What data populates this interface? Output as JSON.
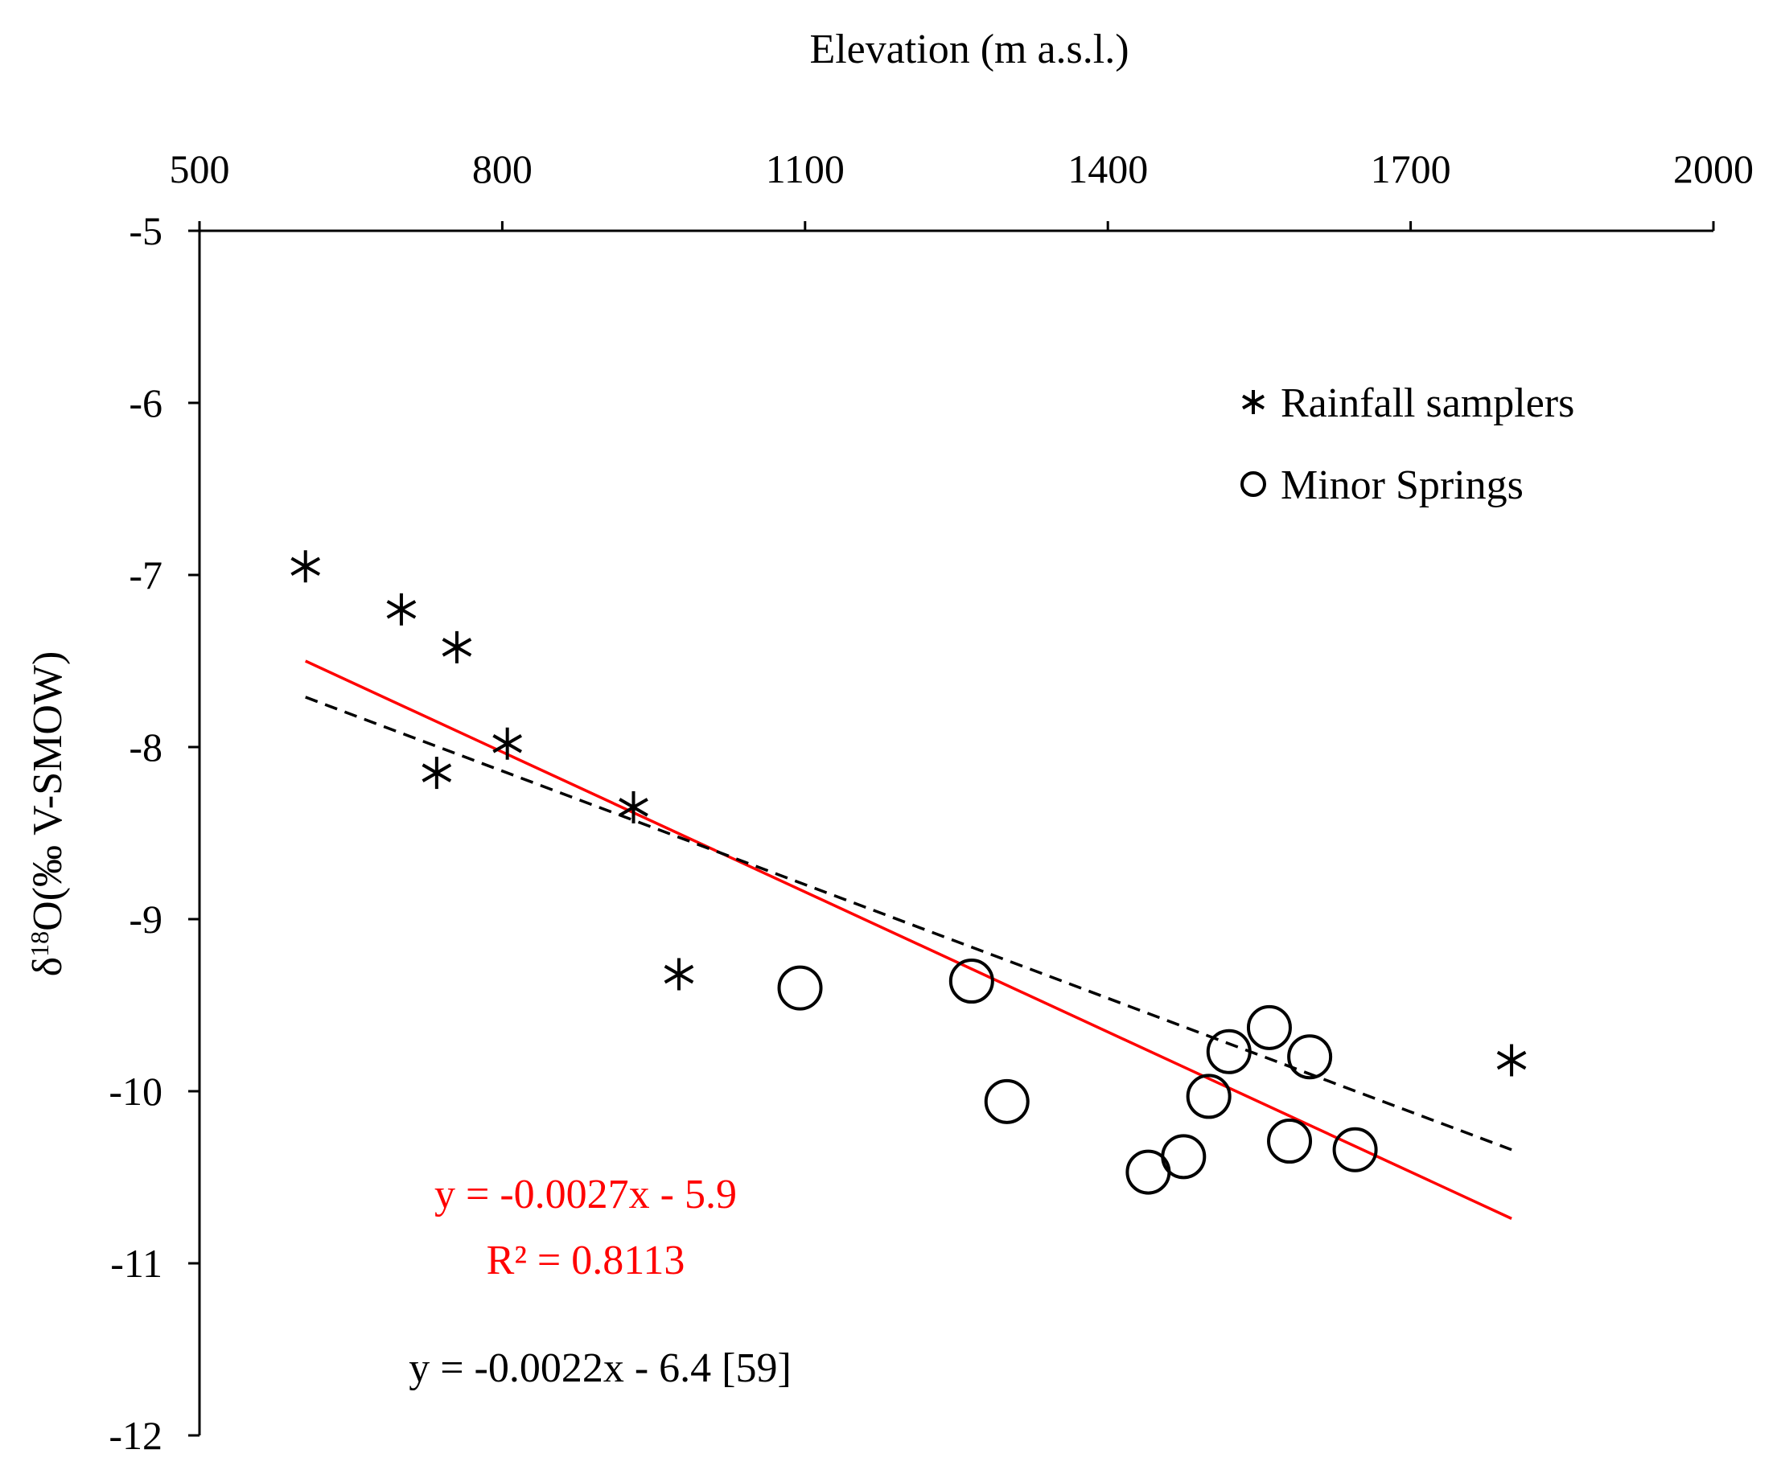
{
  "chart_data": {
    "type": "scatter",
    "title": "",
    "xlabel": "Elevation (m a.s.l.)",
    "ylabel_prefix": "δ",
    "ylabel_sup": "18",
    "ylabel_main": "O(‰ V-SMOW)",
    "xlim": [
      500,
      2000
    ],
    "ylim": [
      -12,
      -5
    ],
    "x_axis_position": "top",
    "x_ticks": [
      500,
      800,
      1100,
      1400,
      1700,
      2000
    ],
    "x_tick_labels": [
      "500",
      "800",
      "1100",
      "1400",
      "1700",
      "2000"
    ],
    "y_ticks": [
      -5,
      -6,
      -7,
      -8,
      -9,
      -10,
      -11,
      -12
    ],
    "y_tick_labels": [
      "-5",
      "-6",
      "-7",
      "-8",
      "-9",
      "-10",
      "-11",
      "-12"
    ],
    "legend_position": "top-right",
    "series": [
      {
        "name": "Rainfall samplers",
        "marker": "asterisk",
        "color": "#000000",
        "points": [
          {
            "x": 605,
            "y": -6.95
          },
          {
            "x": 700,
            "y": -7.2
          },
          {
            "x": 755,
            "y": -7.42
          },
          {
            "x": 735,
            "y": -8.15
          },
          {
            "x": 805,
            "y": -7.98
          },
          {
            "x": 930,
            "y": -8.35
          },
          {
            "x": 975,
            "y": -9.32
          },
          {
            "x": 1800,
            "y": -9.82
          }
        ]
      },
      {
        "name": "Minor Springs",
        "marker": "circle",
        "color": "#000000",
        "points": [
          {
            "x": 1095,
            "y": -9.4
          },
          {
            "x": 1265,
            "y": -9.36
          },
          {
            "x": 1300,
            "y": -10.06
          },
          {
            "x": 1440,
            "y": -10.47
          },
          {
            "x": 1475,
            "y": -10.38
          },
          {
            "x": 1500,
            "y": -10.03
          },
          {
            "x": 1520,
            "y": -9.77
          },
          {
            "x": 1560,
            "y": -9.63
          },
          {
            "x": 1580,
            "y": -10.29
          },
          {
            "x": 1600,
            "y": -9.8
          },
          {
            "x": 1645,
            "y": -10.34
          }
        ]
      }
    ],
    "trendlines": [
      {
        "name": "fit",
        "style": "solid",
        "color": "#ff0000",
        "x": [
          605,
          1800
        ],
        "y": [
          -7.5,
          -10.74
        ],
        "equation": "y = -0.0027x - 5.9",
        "r2_label": "R² = 0.8113"
      },
      {
        "name": "reference",
        "style": "dashed",
        "color": "#000000",
        "x": [
          605,
          1800
        ],
        "y": [
          -7.71,
          -10.34
        ],
        "equation": "y = -0.0022x - 6.4 [59]"
      }
    ]
  }
}
